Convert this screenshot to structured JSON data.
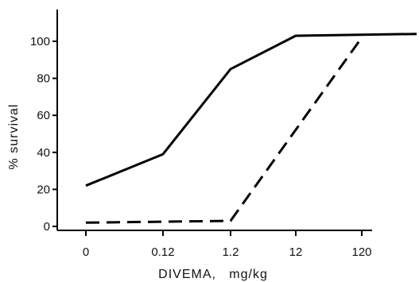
{
  "chart_data": {
    "type": "line",
    "title": "",
    "xlabel": "DIVEMA,   mg/kg",
    "ylabel": "% survival",
    "x_scale": "categorical-log",
    "categories": [
      "0",
      "0.12",
      "1.2",
      "12",
      "120"
    ],
    "yticks": [
      0,
      20,
      40,
      60,
      80,
      100
    ],
    "ylim": [
      -8,
      112
    ],
    "grid": false,
    "legend": "none",
    "series": [
      {
        "style": "solid",
        "color": "#000000",
        "points": [
          {
            "x": "0",
            "y": 22
          },
          {
            "x": "0.12",
            "y": 39
          },
          {
            "x": "1.2",
            "y": 85
          },
          {
            "x": "12",
            "y": 103
          },
          {
            "x": "beyond 120",
            "y": 104
          }
        ]
      },
      {
        "style": "dashed",
        "color": "#000000",
        "points": [
          {
            "x": "0",
            "y": 2
          },
          {
            "x": "1.2",
            "y": 3
          },
          {
            "x": "120",
            "y": 102
          }
        ]
      }
    ]
  }
}
